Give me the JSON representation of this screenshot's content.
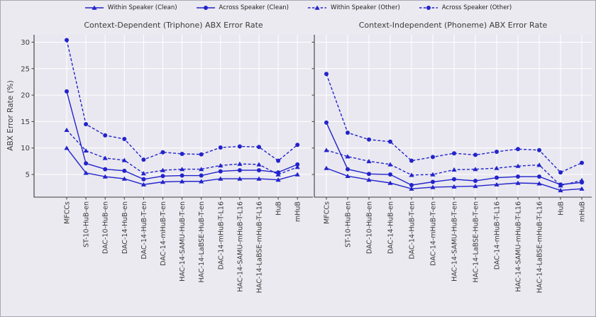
{
  "legend_note": "legend built from chart_data[0].series names",
  "colors": {
    "line_blue": "#2323cb",
    "axes_bg": "#e9e8f0",
    "figure_bg": "#ebeaf0",
    "gridline": "#ffffff",
    "spine": "#3c3c3c",
    "tick_text": "#3a3a3a",
    "title_text": "#3b3b3b"
  },
  "chart_data": [
    {
      "type": "line",
      "title": "Context-Dependent (Triphone) ABX Error Rate",
      "ylabel": "ABX Error Rate (%)",
      "xlabel": "",
      "grid": true,
      "legend_position": "top-center-outside",
      "yticks": [
        5,
        10,
        15,
        20,
        25,
        30
      ],
      "ylim": [
        0.72,
        31.4
      ],
      "categories": [
        "MFCCs",
        "ST-10-HuB-en",
        "DAC-10-HuB-en",
        "DAC-14-HuB-en",
        "DAC-14-HuB-T-en",
        "DAC-14-mHuB-T-en",
        "HAC-14-SAMU-HuB-T-en",
        "HAC-14-LaBSE-HuB-T-en",
        "DAC-14-mHuB-T-L16",
        "HAC-14-SAMU-mHuB-T-L16",
        "HAC-14-LaBSE-mHuB-T-L16",
        "HuB",
        "mHuB"
      ],
      "series": [
        {
          "name": "Within Speaker (Clean)",
          "line": "solid",
          "marker": "triangle",
          "values": [
            10.0,
            5.3,
            4.6,
            4.2,
            3.1,
            3.6,
            3.7,
            3.7,
            4.2,
            4.2,
            4.2,
            4.0,
            5.0
          ]
        },
        {
          "name": "Across Speaker (Clean)",
          "line": "solid",
          "marker": "circle",
          "values": [
            20.7,
            7.1,
            6.0,
            5.7,
            4.1,
            4.7,
            4.8,
            4.8,
            5.6,
            5.8,
            5.8,
            5.4,
            6.9
          ]
        },
        {
          "name": "Within Speaker (Other)",
          "line": "dashed",
          "marker": "triangle",
          "values": [
            13.4,
            9.5,
            8.1,
            7.7,
            5.2,
            5.8,
            6.0,
            6.0,
            6.7,
            7.0,
            6.9,
            5.0,
            6.4
          ]
        },
        {
          "name": "Across Speaker (Other)",
          "line": "dashed",
          "marker": "circle",
          "values": [
            30.4,
            14.5,
            12.4,
            11.7,
            7.8,
            9.2,
            8.9,
            8.8,
            10.1,
            10.3,
            10.2,
            7.6,
            10.6
          ]
        }
      ]
    },
    {
      "type": "line",
      "title": "Context-Independent (Phoneme) ABX Error Rate",
      "ylabel": "ABX Error Rate (%)",
      "xlabel": "",
      "grid": true,
      "legend_position": "top-center-outside",
      "yticks": [
        5,
        10,
        15,
        20,
        25,
        30
      ],
      "ylim": [
        0.72,
        31.4
      ],
      "categories": [
        "MFCCs",
        "ST-10-HuB-en",
        "DAC-10-HuB-en",
        "DAC-14-HuB-en",
        "DAC-14-HuB-T-en",
        "DAC-14-mHuB-T-en",
        "HAC-14-SAMU-HuB-T-en",
        "HAC-14-LaBSE-HuB-T-en",
        "DAC-14-mHuB-T-L16",
        "HAC-14-SAMU-mHuB-T-L16",
        "HAC-14-LaBSE-mHuB-T-L16",
        "HuB",
        "mHuB"
      ],
      "series": [
        {
          "name": "Within Speaker (Clean)",
          "line": "solid",
          "marker": "triangle",
          "values": [
            6.2,
            4.7,
            4.0,
            3.4,
            2.3,
            2.6,
            2.7,
            2.8,
            3.1,
            3.4,
            3.3,
            2.0,
            2.3
          ]
        },
        {
          "name": "Across Speaker (Clean)",
          "line": "solid",
          "marker": "circle",
          "values": [
            14.8,
            6.0,
            5.1,
            5.0,
            3.0,
            3.6,
            4.1,
            3.8,
            4.4,
            4.6,
            4.6,
            3.1,
            3.5
          ]
        },
        {
          "name": "Within Speaker (Other)",
          "line": "dashed",
          "marker": "triangle",
          "values": [
            9.6,
            8.4,
            7.5,
            6.9,
            4.9,
            5.0,
            5.9,
            6.0,
            6.2,
            6.6,
            6.8,
            2.9,
            3.9
          ]
        },
        {
          "name": "Across Speaker (Other)",
          "line": "dashed",
          "marker": "circle",
          "values": [
            24.0,
            12.9,
            11.6,
            11.2,
            7.6,
            8.3,
            9.0,
            8.7,
            9.3,
            9.8,
            9.6,
            5.4,
            7.2
          ]
        }
      ]
    }
  ]
}
